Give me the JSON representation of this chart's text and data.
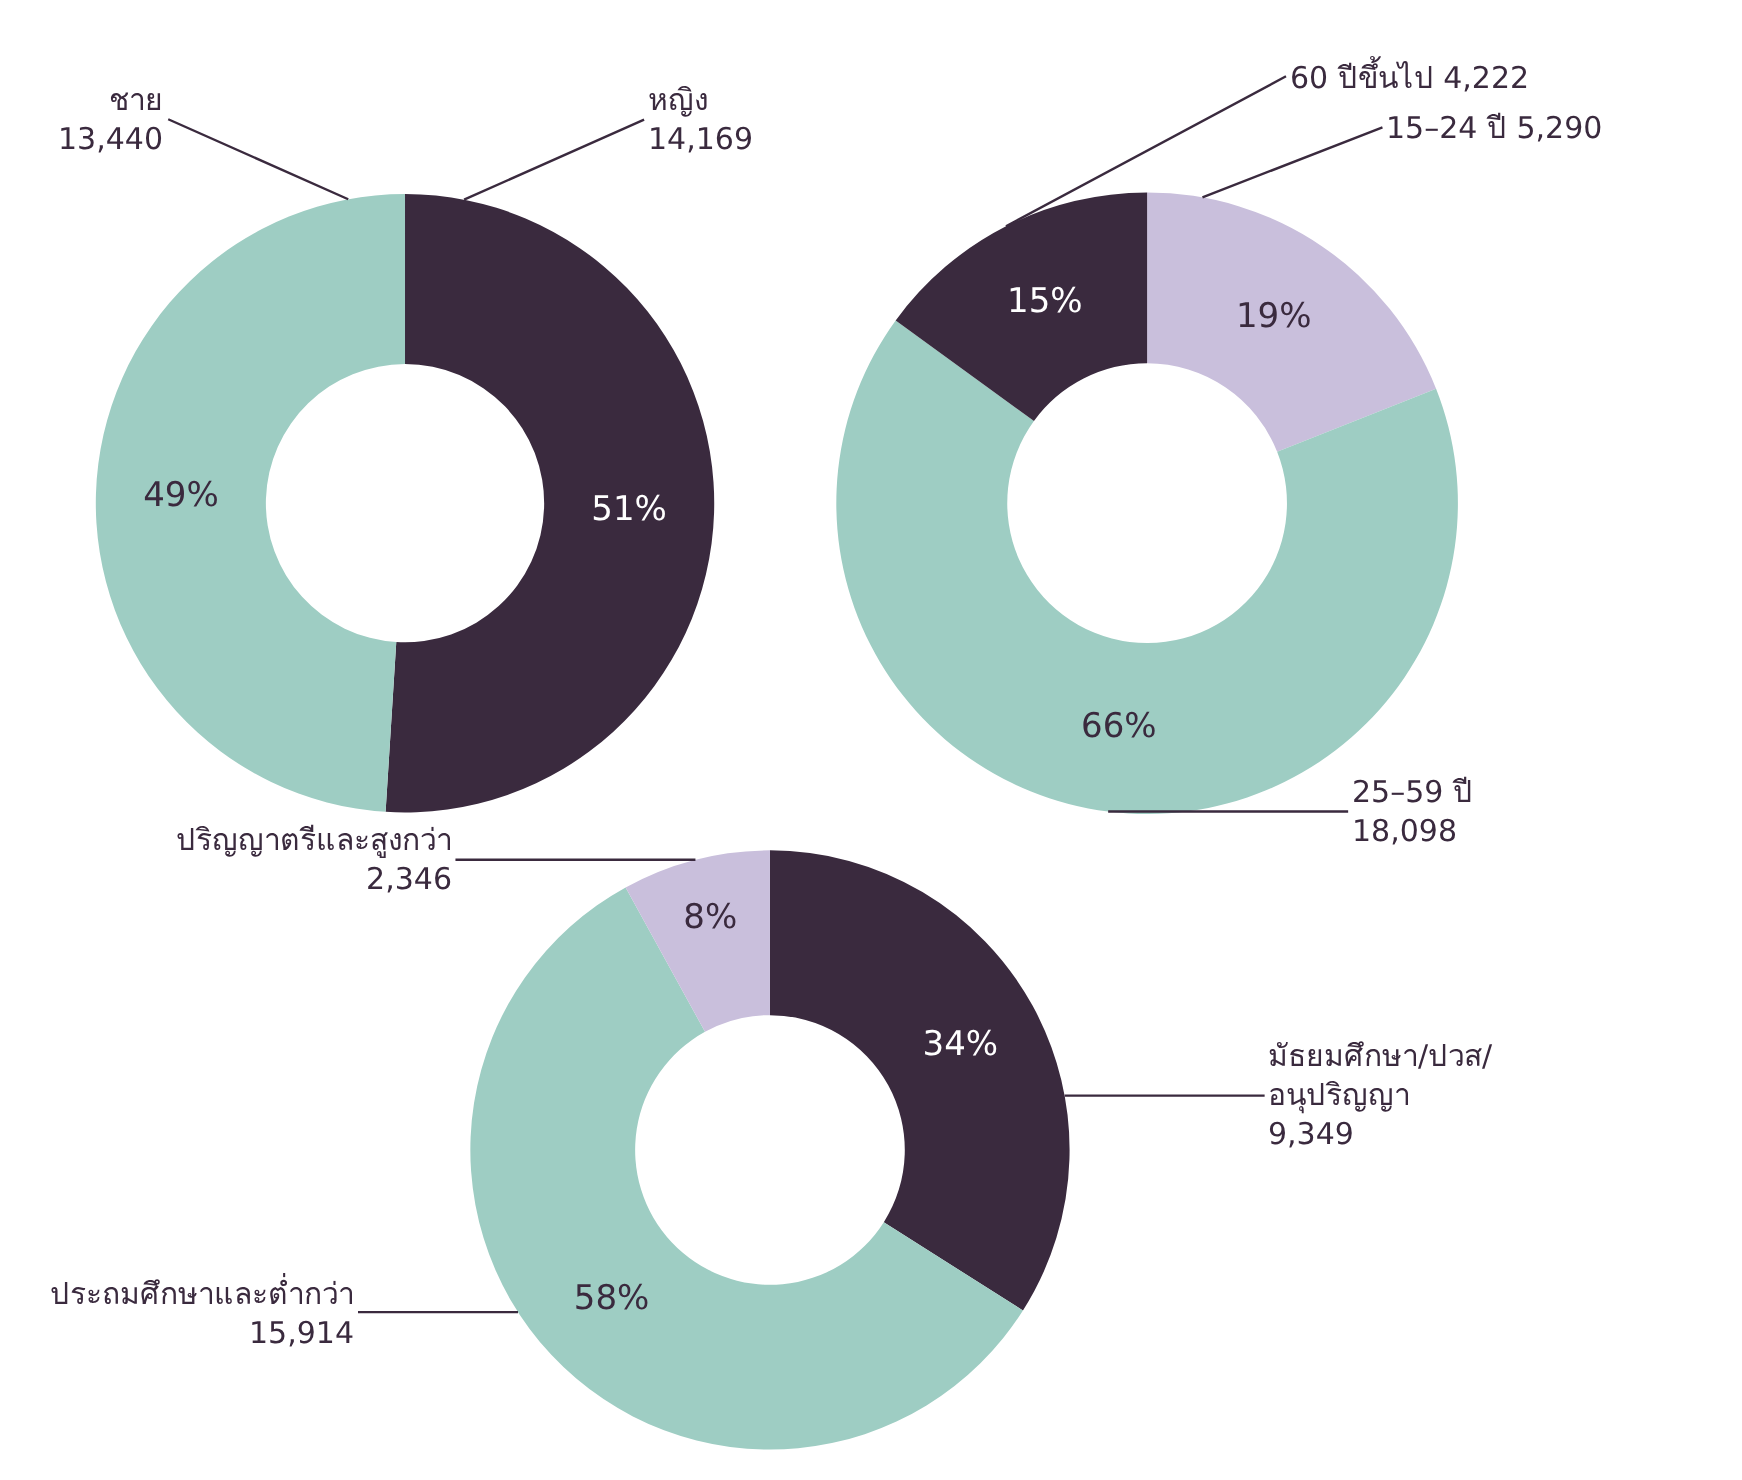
{
  "chart_data": [
    {
      "type": "donut",
      "categories": [
        "หญิง\n14,169",
        "ชาย\n13,440"
      ],
      "values": [
        51,
        49
      ],
      "colors": [
        "#3a2a3e",
        "#9ecdc3"
      ],
      "value_labels": [
        "51%",
        "49%"
      ]
    },
    {
      "type": "donut",
      "categories": [
        "15–24 ปี 5,290",
        "25–59 ปี\n18,098",
        "60 ปีขึ้นไป 4,222"
      ],
      "values": [
        19,
        66,
        15
      ],
      "colors": [
        "#c9bfdc",
        "#9ecdc3",
        "#3a2a3e"
      ],
      "value_labels": [
        "19%",
        "66%",
        "15%"
      ]
    },
    {
      "type": "donut",
      "categories": [
        "มัธยมศึกษา/ปวส/\nอนุปริญญา\n9,349",
        "ประถมศึกษาและต่ำกว่า\n15,914",
        "ปริญญาตรีและสูงกว่า\n2,346"
      ],
      "values": [
        34,
        58,
        8
      ],
      "colors": [
        "#3a2a3e",
        "#9ecdc3",
        "#c9bfdc"
      ],
      "value_labels": [
        "34%",
        "58%",
        "8%"
      ]
    }
  ]
}
